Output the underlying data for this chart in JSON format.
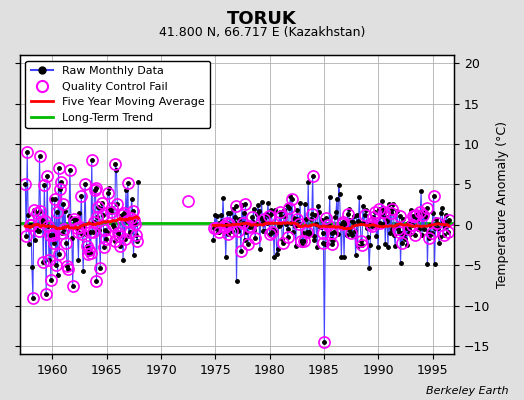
{
  "title": "TORUK",
  "subtitle": "41.800 N, 66.717 E (Kazakhstan)",
  "ylabel": "Temperature Anomaly (°C)",
  "credit": "Berkeley Earth",
  "xlim": [
    1957,
    1997
  ],
  "ylim": [
    -16,
    21
  ],
  "yticks": [
    -15,
    -10,
    -5,
    0,
    5,
    10,
    15,
    20
  ],
  "xticks": [
    1960,
    1965,
    1970,
    1975,
    1980,
    1985,
    1990,
    1995
  ],
  "bg_color": "#e0e0e0",
  "plot_bg_color": "#ffffff",
  "grid_color": "#b0b0b0",
  "raw_line_color": "#4444ff",
  "raw_dot_color": "#000000",
  "qc_fail_color": "#ff00ff",
  "moving_avg_color": "#ff0000",
  "long_trend_color": "#00bb00",
  "long_trend_value": 0.2,
  "seed": 7,
  "n_early": 120,
  "n_late": 264,
  "year_start": 1957.5,
  "year_gap_start": 1968.0,
  "year_gap_end": 1974.8,
  "year_end": 1996.5
}
